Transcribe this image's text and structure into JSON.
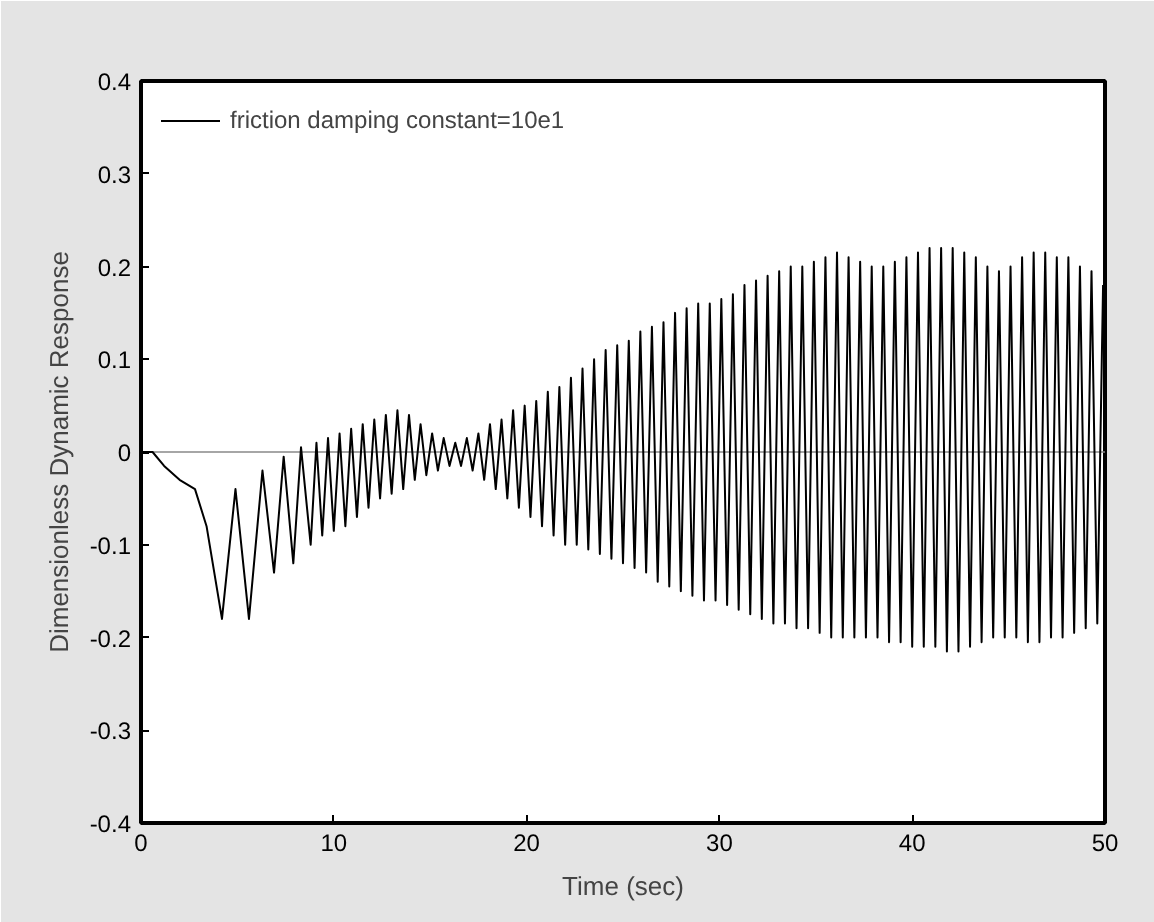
{
  "chart_data": {
    "type": "line",
    "xlabel": "Time (sec)",
    "ylabel": "Dimensionless Dynamic Response",
    "xlim": [
      0,
      50
    ],
    "xticks": [
      0,
      10,
      20,
      30,
      40,
      50
    ],
    "ylim": [
      -0.4,
      0.4
    ],
    "yticks": [
      -0.4,
      -0.3,
      -0.2,
      -0.1,
      0,
      0.1,
      0.2,
      0.3,
      0.4
    ],
    "grid": false,
    "legend": "top left",
    "line_style": "solid",
    "ref_lines": [
      {
        "axis": "y",
        "value": 0,
        "color": "#888888"
      }
    ],
    "series": [
      {
        "name": "friction damping constant=10e1",
        "color": "#000000",
        "x": [
          0,
          0.6,
          1.2,
          2,
          2.8,
          3.4,
          4.2,
          4.9,
          5.6,
          6.3,
          6.9,
          7.4,
          7.9,
          8.3,
          8.8,
          9.1,
          9.4,
          9.7,
          10.0,
          10.3,
          10.6,
          10.9,
          11.2,
          11.5,
          11.8,
          12.1,
          12.4,
          12.7,
          13.0,
          13.3,
          13.6,
          13.9,
          14.2,
          14.5,
          14.8,
          15.1,
          15.4,
          15.7,
          16.0,
          16.3,
          16.6,
          16.9,
          17.2,
          17.5,
          17.8,
          18.1,
          18.4,
          18.7,
          19.0,
          19.3,
          19.6,
          19.9,
          20.2,
          20.5,
          20.8,
          21.1,
          21.4,
          21.7,
          22.0,
          22.3,
          22.6,
          22.9,
          23.2,
          23.5,
          23.8,
          24.1,
          24.4,
          24.7,
          25.0,
          25.3,
          25.6,
          25.9,
          26.2,
          26.5,
          26.8,
          27.1,
          27.4,
          27.7,
          28.0,
          28.3,
          28.6,
          28.9,
          29.2,
          29.5,
          29.8,
          30.1,
          30.4,
          30.7,
          31.0,
          31.3,
          31.6,
          31.9,
          32.2,
          32.5,
          32.8,
          33.1,
          33.4,
          33.7,
          34.0,
          34.3,
          34.6,
          34.9,
          35.2,
          35.5,
          35.8,
          36.1,
          36.4,
          36.7,
          37.0,
          37.3,
          37.6,
          37.9,
          38.2,
          38.5,
          38.8,
          39.1,
          39.4,
          39.7,
          40.0,
          40.3,
          40.6,
          40.9,
          41.2,
          41.5,
          41.8,
          42.1,
          42.4,
          42.7,
          43.0,
          43.3,
          43.6,
          43.9,
          44.2,
          44.5,
          44.8,
          45.1,
          45.4,
          45.7,
          46.0,
          46.3,
          46.6,
          46.9,
          47.2,
          47.5,
          47.8,
          48.1,
          48.4,
          48.7,
          49.0,
          49.3,
          49.6,
          49.9
        ],
        "values": [
          0,
          0,
          -0.015,
          -0.03,
          -0.04,
          -0.08,
          -0.18,
          -0.04,
          -0.18,
          -0.02,
          -0.13,
          -0.005,
          -0.12,
          0.005,
          -0.1,
          0.01,
          -0.09,
          0.015,
          -0.085,
          0.02,
          -0.08,
          0.025,
          -0.07,
          0.03,
          -0.06,
          0.035,
          -0.05,
          0.04,
          -0.045,
          0.045,
          -0.04,
          0.04,
          -0.03,
          0.03,
          -0.025,
          0.02,
          -0.02,
          0.015,
          -0.015,
          0.01,
          -0.015,
          0.015,
          -0.02,
          0.02,
          -0.03,
          0.03,
          -0.04,
          0.035,
          -0.05,
          0.045,
          -0.06,
          0.05,
          -0.07,
          0.055,
          -0.08,
          0.065,
          -0.09,
          0.07,
          -0.1,
          0.08,
          -0.1,
          0.09,
          -0.105,
          0.1,
          -0.11,
          0.11,
          -0.115,
          0.115,
          -0.12,
          0.12,
          -0.125,
          0.13,
          -0.13,
          0.135,
          -0.14,
          0.14,
          -0.145,
          0.15,
          -0.15,
          0.155,
          -0.155,
          0.16,
          -0.16,
          0.16,
          -0.16,
          0.165,
          -0.165,
          0.17,
          -0.17,
          0.18,
          -0.175,
          0.185,
          -0.18,
          0.19,
          -0.185,
          0.195,
          -0.185,
          0.2,
          -0.19,
          0.2,
          -0.19,
          0.205,
          -0.195,
          0.21,
          -0.2,
          0.215,
          -0.2,
          0.21,
          -0.2,
          0.205,
          -0.2,
          0.2,
          -0.2,
          0.2,
          -0.205,
          0.205,
          -0.205,
          0.21,
          -0.21,
          0.215,
          -0.21,
          0.22,
          -0.21,
          0.22,
          -0.215,
          0.22,
          -0.215,
          0.215,
          -0.21,
          0.21,
          -0.205,
          0.2,
          -0.2,
          0.195,
          -0.2,
          0.2,
          -0.2,
          0.21,
          -0.205,
          0.215,
          -0.205,
          0.215,
          -0.2,
          0.21,
          -0.2,
          0.21,
          -0.195,
          0.2,
          -0.19,
          0.195,
          -0.185,
          0.18
        ]
      }
    ]
  }
}
